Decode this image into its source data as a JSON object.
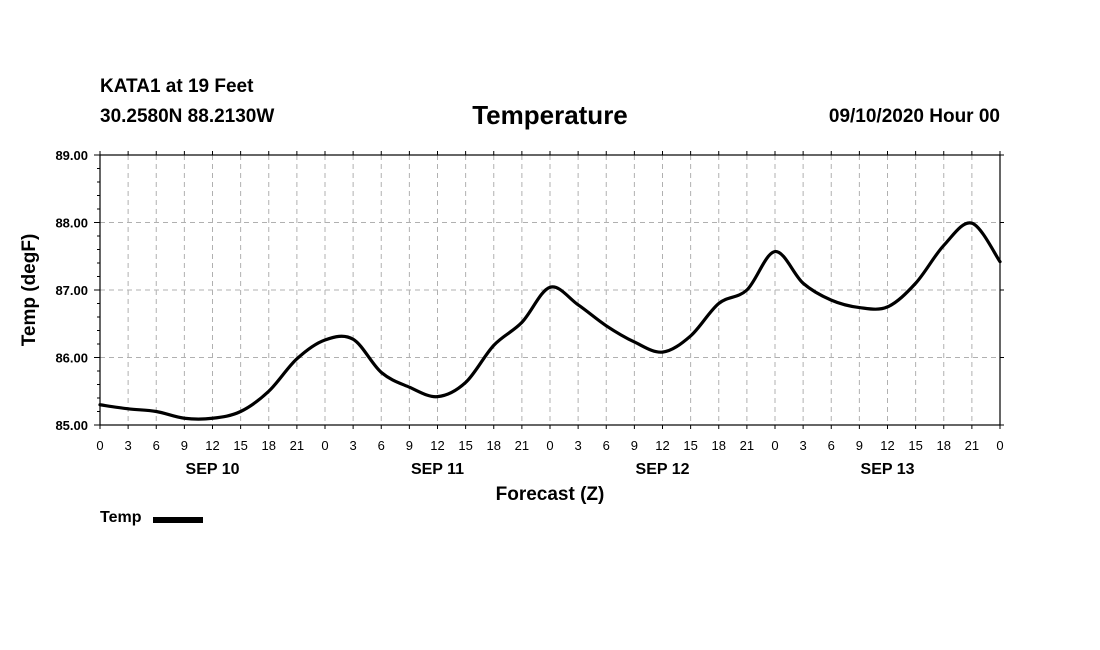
{
  "header": {
    "station": "KATA1 at 19 Feet",
    "coords": "30.2580N 88.2130W",
    "title": "Temperature",
    "run_time": "09/10/2020 Hour 00"
  },
  "legend": {
    "label": "Temp"
  },
  "colors": {
    "line": "#000000",
    "grid": "#b0b0b0",
    "axis": "#000000"
  },
  "chart_data": {
    "type": "line",
    "title": "Temperature",
    "xlabel": "Forecast (Z)",
    "ylabel": "Temp (degF)",
    "xlim": [
      0,
      96
    ],
    "ylim": [
      85.0,
      89.0
    ],
    "yticks": [
      "85.00",
      "86.00",
      "87.00",
      "88.00",
      "89.00"
    ],
    "xtick_labels": [
      "0",
      "3",
      "6",
      "9",
      "12",
      "15",
      "18",
      "21",
      "0",
      "3",
      "6",
      "9",
      "12",
      "15",
      "18",
      "21",
      "0",
      "3",
      "6",
      "9",
      "12",
      "15",
      "18",
      "21",
      "0",
      "3",
      "6",
      "9",
      "12",
      "15",
      "18",
      "21",
      "0"
    ],
    "date_labels": [
      {
        "label": "SEP 10",
        "hour": 12
      },
      {
        "label": "SEP 11",
        "hour": 36
      },
      {
        "label": "SEP 12",
        "hour": 60
      },
      {
        "label": "SEP 13",
        "hour": 84
      }
    ],
    "grid": true,
    "series": [
      {
        "name": "Temp",
        "x": [
          0,
          3,
          6,
          9,
          12,
          15,
          18,
          21,
          24,
          27,
          30,
          33,
          36,
          39,
          42,
          45,
          48,
          51,
          54,
          57,
          60,
          63,
          66,
          69,
          72,
          75,
          78,
          81,
          84,
          87,
          90,
          93,
          96
        ],
        "y": [
          85.3,
          85.24,
          85.2,
          85.1,
          85.1,
          85.2,
          85.5,
          85.98,
          86.26,
          86.27,
          85.78,
          85.56,
          85.42,
          85.63,
          86.18,
          86.52,
          87.04,
          86.78,
          86.47,
          86.23,
          86.08,
          86.32,
          86.8,
          87.0,
          87.57,
          87.1,
          86.85,
          86.74,
          86.75,
          87.1,
          87.66,
          87.99,
          87.42
        ]
      }
    ]
  }
}
